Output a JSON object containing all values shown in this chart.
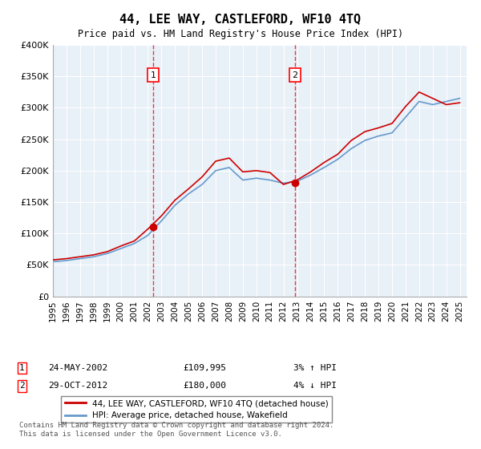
{
  "title": "44, LEE WAY, CASTLEFORD, WF10 4TQ",
  "subtitle": "Price paid vs. HM Land Registry's House Price Index (HPI)",
  "xlabel": "",
  "ylabel": "",
  "ylim": [
    0,
    400000
  ],
  "xlim": [
    1995,
    2025.5
  ],
  "yticks": [
    0,
    50000,
    100000,
    150000,
    200000,
    250000,
    300000,
    350000,
    400000
  ],
  "ytick_labels": [
    "£0",
    "£50K",
    "£100K",
    "£150K",
    "£200K",
    "£250K",
    "£300K",
    "£350K",
    "£400K"
  ],
  "xticks": [
    1995,
    1996,
    1997,
    1998,
    1999,
    2000,
    2001,
    2002,
    2003,
    2004,
    2005,
    2006,
    2007,
    2008,
    2009,
    2010,
    2011,
    2012,
    2013,
    2014,
    2015,
    2016,
    2017,
    2018,
    2019,
    2020,
    2021,
    2022,
    2023,
    2024,
    2025
  ],
  "hpi_years": [
    1995,
    1996,
    1997,
    1998,
    1999,
    2000,
    2001,
    2002,
    2003,
    2004,
    2005,
    2006,
    2007,
    2008,
    2009,
    2010,
    2011,
    2012,
    2013,
    2014,
    2015,
    2016,
    2017,
    2018,
    2019,
    2020,
    2021,
    2022,
    2023,
    2024,
    2025
  ],
  "hpi_values": [
    55000,
    57000,
    60000,
    63000,
    68000,
    76000,
    84000,
    97000,
    120000,
    145000,
    163000,
    178000,
    200000,
    205000,
    185000,
    188000,
    185000,
    180000,
    183000,
    193000,
    205000,
    218000,
    235000,
    248000,
    255000,
    260000,
    285000,
    310000,
    305000,
    310000,
    315000
  ],
  "price_years": [
    1995,
    1996,
    1997,
    1998,
    1999,
    2000,
    2001,
    2002,
    2003,
    2004,
    2005,
    2006,
    2007,
    2008,
    2009,
    2010,
    2011,
    2012,
    2013,
    2014,
    2015,
    2016,
    2017,
    2018,
    2019,
    2020,
    2021,
    2022,
    2023,
    2024,
    2025
  ],
  "price_values": [
    58000,
    60000,
    63000,
    66000,
    71000,
    80000,
    88000,
    107000,
    128000,
    153000,
    171000,
    190000,
    215000,
    220000,
    198000,
    200000,
    197000,
    178000,
    185000,
    198000,
    213000,
    226000,
    248000,
    262000,
    268000,
    275000,
    302000,
    325000,
    315000,
    305000,
    308000
  ],
  "sale1_year": 2002.38,
  "sale1_price": 109995,
  "sale1_label": "1",
  "sale1_date": "24-MAY-2002",
  "sale1_amount": "£109,995",
  "sale1_hpi": "3% ↑ HPI",
  "sale2_year": 2012.83,
  "sale2_price": 180000,
  "sale2_label": "2",
  "sale2_date": "29-OCT-2012",
  "sale2_amount": "£180,000",
  "sale2_hpi": "4% ↓ HPI",
  "line1_color": "#cc0000",
  "line2_color": "#6699cc",
  "background_color": "#ddeeff",
  "plot_bg": "#e8f0f8",
  "legend_line1": "44, LEE WAY, CASTLEFORD, WF10 4TQ (detached house)",
  "legend_line2": "HPI: Average price, detached house, Wakefield",
  "footer": "Contains HM Land Registry data © Crown copyright and database right 2024.\nThis data is licensed under the Open Government Licence v3.0."
}
